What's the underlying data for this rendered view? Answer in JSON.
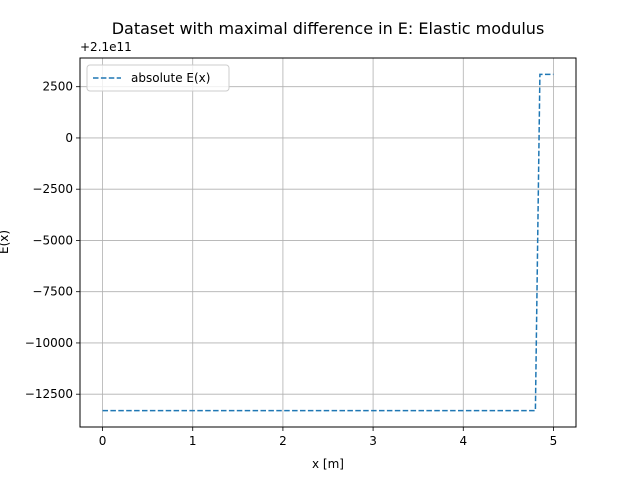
{
  "chart_data": {
    "type": "line",
    "title": "Dataset with maximal difference in E: Elastic modulus",
    "xlabel": "x [m]",
    "ylabel": "E(x)",
    "offset_label": "+2.1e11",
    "xlim": [
      -0.25,
      5.25
    ],
    "ylim": [
      -14100,
      3900
    ],
    "xticks": [
      0,
      1,
      2,
      3,
      4,
      5
    ],
    "xtick_labels": [
      "0",
      "1",
      "2",
      "3",
      "4",
      "5"
    ],
    "yticks": [
      -12500,
      -10000,
      -7500,
      -5000,
      -2500,
      0,
      2500
    ],
    "ytick_labels": [
      "−12500",
      "−10000",
      "−7500",
      "−5000",
      "−2500",
      "0",
      "2500"
    ],
    "grid": true,
    "legend_position": "top-left",
    "series": [
      {
        "name": "absolute E(x)",
        "style": "dashed",
        "color": "#1f77b4",
        "x": [
          0,
          4.8,
          4.8,
          4.85,
          4.85,
          5.0
        ],
        "y": [
          -13300,
          -13300,
          -13300,
          3100,
          3100,
          3100
        ]
      }
    ]
  }
}
